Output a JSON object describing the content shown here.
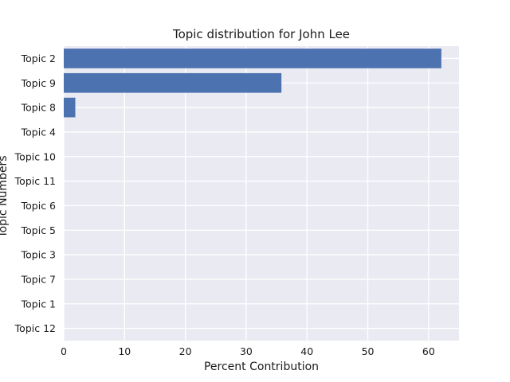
{
  "chart_data": {
    "type": "bar",
    "orientation": "horizontal",
    "title": "Topic distribution for John Lee",
    "xlabel": "Percent Contribution",
    "ylabel": "Topic Numbers",
    "categories": [
      "Topic 2",
      "Topic 9",
      "Topic 8",
      "Topic 4",
      "Topic 10",
      "Topic 11",
      "Topic 6",
      "Topic 5",
      "Topic 3",
      "Topic 7",
      "Topic 1",
      "Topic 12"
    ],
    "values": [
      62.1,
      35.8,
      1.9,
      0,
      0,
      0,
      0,
      0,
      0,
      0,
      0,
      0
    ],
    "xlim": [
      0,
      65
    ],
    "xticks": [
      0,
      10,
      20,
      30,
      40,
      50,
      60
    ],
    "grid": true,
    "colors": {
      "bar": "#4c72b0",
      "plot_background": "#eaeaf2",
      "grid": "#ffffff"
    }
  }
}
